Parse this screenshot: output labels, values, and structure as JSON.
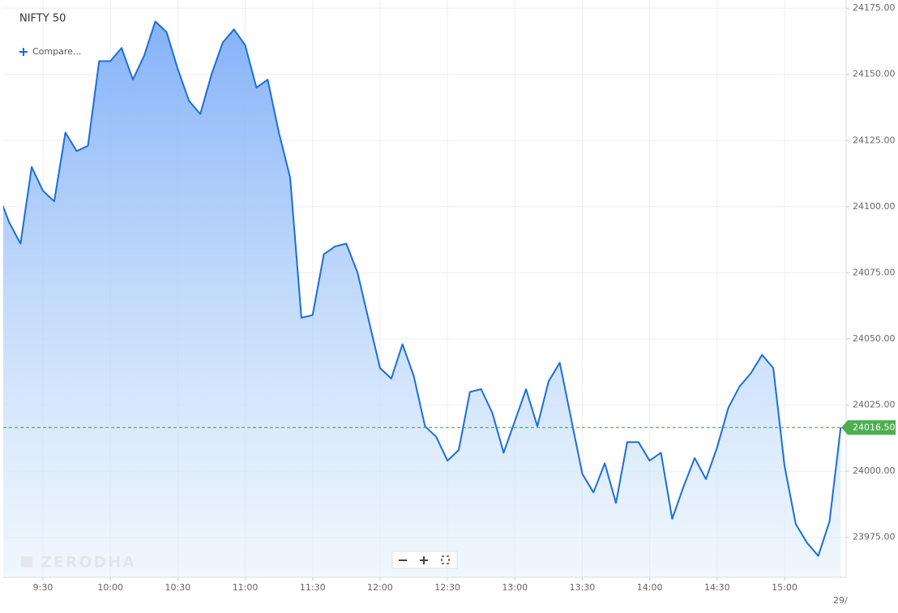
{
  "chart_data": {
    "type": "area",
    "title": "NIFTY 50",
    "compare_label": "Compare...",
    "watermark": "ZERODHA",
    "date_label": "29/",
    "categories": [
      null,
      null,
      null,
      null,
      "9:30",
      null,
      null,
      null,
      null,
      null,
      "10:00",
      null,
      null,
      null,
      null,
      null,
      "10:30",
      null,
      null,
      null,
      null,
      null,
      "11:00",
      null,
      null,
      null,
      null,
      null,
      "11:30",
      null,
      null,
      null,
      null,
      null,
      "12:00",
      null,
      null,
      null,
      null,
      null,
      "12:30",
      null,
      null,
      null,
      null,
      null,
      "13:00",
      null,
      null,
      null,
      null,
      null,
      "13:30",
      null,
      null,
      null,
      null,
      null,
      "14:00",
      null,
      null,
      null,
      null,
      null,
      "14:30",
      null,
      null,
      null,
      null,
      null,
      "15:00",
      null,
      null,
      null,
      null,
      null
    ],
    "series": [
      {
        "color": "#1a6fd9",
        "values": [
          24105,
          24094,
          24086,
          24115,
          24106,
          24102,
          24128,
          24121,
          24123,
          24155,
          24155,
          24160,
          24148,
          24157,
          24170,
          24166,
          24152,
          24140,
          24135,
          24150,
          24162,
          24167,
          24161,
          24145,
          24148,
          24128,
          24111,
          24058,
          24059,
          24082,
          24085,
          24086,
          24075,
          24057,
          24039,
          24035,
          24048,
          24036,
          24017,
          24013,
          24004,
          24008,
          24030,
          24031,
          24022,
          24007,
          24019,
          24031,
          24017,
          24034,
          24041,
          24020,
          23999,
          23992,
          24003,
          23988,
          24011,
          24011,
          24004,
          24007,
          23982,
          23994,
          24005,
          23997,
          24009,
          24024,
          24032,
          24037,
          24044,
          24039,
          24002,
          23980,
          23973,
          23968,
          23981,
          24016.5
        ]
      }
    ],
    "ylim": [
      23959.9,
      24178.1
    ],
    "yticks": [
      {
        "value": 23975,
        "label": "23975.00"
      },
      {
        "value": 24000,
        "label": "24000.00"
      },
      {
        "value": 24025,
        "label": "24025.00"
      },
      {
        "value": 24050,
        "label": "24050.00"
      },
      {
        "value": 24075,
        "label": "24075.00"
      },
      {
        "value": 24100,
        "label": "24100.00"
      },
      {
        "value": 24125,
        "label": "24125.00"
      },
      {
        "value": 24150,
        "label": "24150.00"
      },
      {
        "value": 24175,
        "label": "24175.00"
      }
    ],
    "last_price": {
      "value": 24016.5,
      "label": "24016.50"
    },
    "grid": true
  }
}
